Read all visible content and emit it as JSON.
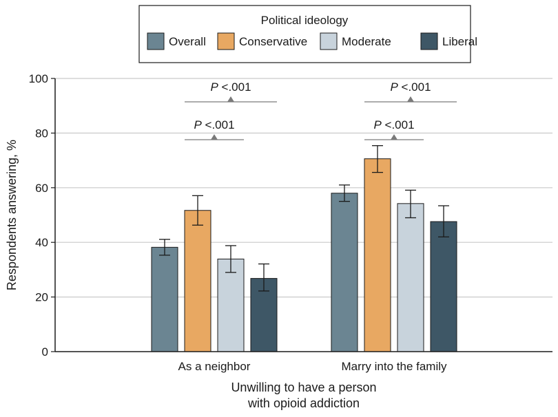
{
  "chart_data": {
    "type": "bar",
    "legend": {
      "title": "Political ideology",
      "placement": "top-center"
    },
    "categories": [
      "As a neighbor",
      "Marry into the family"
    ],
    "series": [
      {
        "name": "Overall",
        "color": "#6b8592",
        "values": [
          38.2,
          58.0
        ],
        "ci_low": [
          35.3,
          55.0
        ],
        "ci_high": [
          41.1,
          61.0
        ]
      },
      {
        "name": "Conservative",
        "color": "#e8a862",
        "values": [
          51.7,
          70.6
        ],
        "ci_low": [
          46.3,
          65.6
        ],
        "ci_high": [
          57.1,
          75.4
        ]
      },
      {
        "name": "Moderate",
        "color": "#c8d3dc",
        "values": [
          33.9,
          54.2
        ],
        "ci_low": [
          29.0,
          49.0
        ],
        "ci_high": [
          38.8,
          59.1
        ]
      },
      {
        "name": "Liberal",
        "color": "#3e5766",
        "values": [
          26.8,
          47.6
        ],
        "ci_low": [
          22.2,
          42.0
        ],
        "ci_high": [
          32.1,
          53.4
        ]
      }
    ],
    "ylabel": "Respondents answering, %",
    "xlabel_lines": [
      "Unwilling to have a person",
      "with opioid addiction"
    ],
    "ylim": [
      0,
      100
    ],
    "yticks": [
      0,
      20,
      40,
      60,
      80,
      100
    ],
    "grid": true,
    "annotations": [
      {
        "category": 0,
        "from_series": 1,
        "to_series": 2,
        "level": 1,
        "p_label": "P",
        "p_value": " <.001"
      },
      {
        "category": 0,
        "from_series": 1,
        "to_series": 3,
        "level": 2,
        "p_label": "P",
        "p_value": " <.001"
      },
      {
        "category": 1,
        "from_series": 1,
        "to_series": 2,
        "level": 1,
        "p_label": "P",
        "p_value": " <.001"
      },
      {
        "category": 1,
        "from_series": 1,
        "to_series": 3,
        "level": 2,
        "p_label": "P",
        "p_value": " <.001"
      }
    ]
  }
}
